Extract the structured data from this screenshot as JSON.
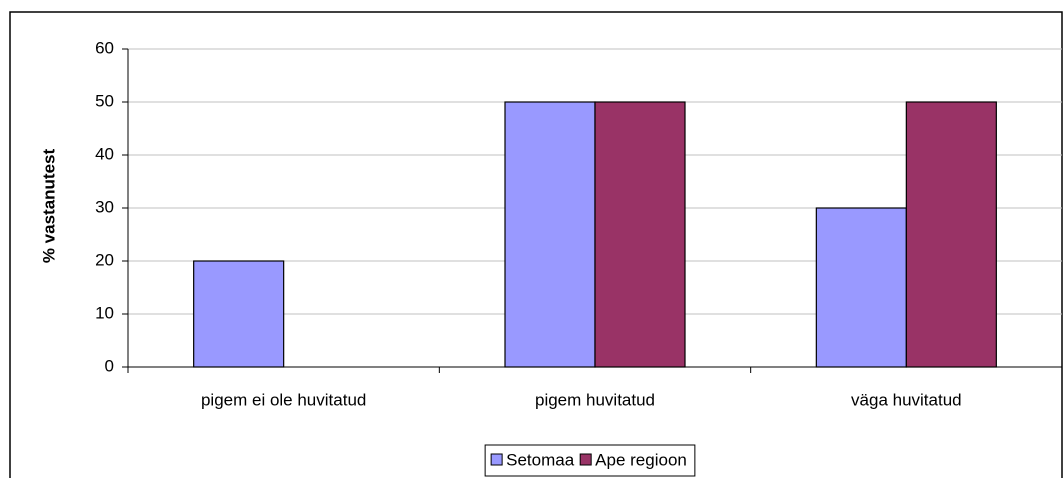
{
  "chart_data": {
    "type": "bar",
    "y_label": "% vastanutest",
    "categories": [
      "pigem ei ole huvitatud",
      "pigem huvitatud",
      "väga huvitatud"
    ],
    "series": [
      {
        "name": "Setomaa",
        "color": "#9999ff",
        "values": [
          20,
          50,
          30
        ]
      },
      {
        "name": "Ape regioon",
        "color": "#993366",
        "values": [
          0,
          50,
          50
        ]
      }
    ],
    "ylim": [
      0,
      60
    ],
    "yticks": [
      0,
      10,
      20,
      30,
      40,
      50,
      60
    ],
    "grid": true,
    "legend": "bottom"
  }
}
